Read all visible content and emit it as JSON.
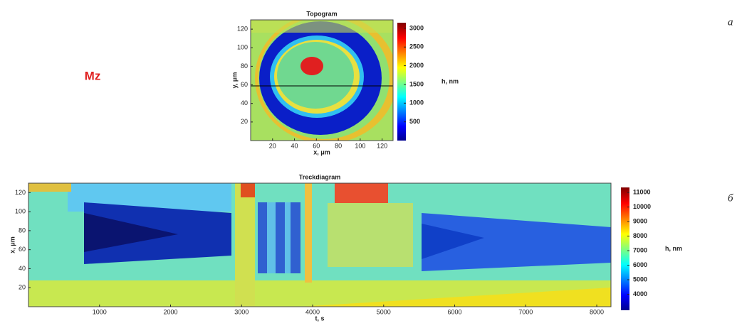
{
  "label": "Mz",
  "chart_data": [
    {
      "type": "heatmap",
      "title": "Topogram",
      "panel": "a",
      "xlabel": "x, μm",
      "ylabel": "y, μm",
      "xlim": [
        0,
        130
      ],
      "ylim": [
        0,
        130
      ],
      "xticks": [
        20,
        40,
        60,
        80,
        100,
        120
      ],
      "yticks": [
        20,
        40,
        60,
        80,
        100,
        120
      ],
      "colorbar": {
        "label": "h, nm",
        "lim": [
          0,
          3150
        ],
        "ticks": [
          500,
          1000,
          1500,
          2000,
          2500,
          3000
        ]
      }
    },
    {
      "type": "heatmap",
      "title": "Treckdiagram",
      "panel": "б",
      "xlabel": "t, s",
      "ylabel": "x, μm",
      "xlim": [
        0,
        8200
      ],
      "ylim": [
        0,
        130
      ],
      "xticks": [
        1000,
        2000,
        3000,
        4000,
        5000,
        6000,
        7000,
        8000
      ],
      "yticks": [
        20,
        40,
        60,
        80,
        100,
        120
      ],
      "colorbar": {
        "label": "h, nm",
        "lim": [
          2900,
          11350
        ],
        "ticks": [
          4000,
          5000,
          6000,
          7000,
          8000,
          9000,
          10000,
          11000
        ]
      }
    }
  ]
}
